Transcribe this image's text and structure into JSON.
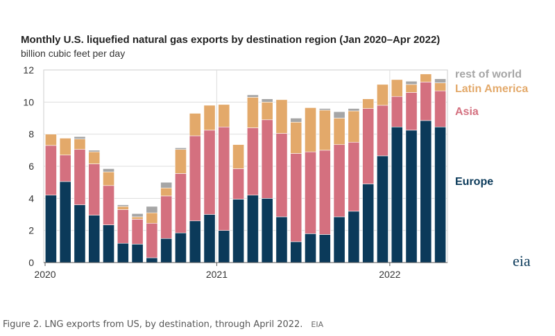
{
  "chart_data": {
    "type": "bar",
    "stacked": true,
    "title": "Monthly U.S. liquefied natural gas exports by destination region (Jan 2020–Apr 2022)",
    "ylabel": "billion cubic feet per day",
    "ylim": [
      0,
      12
    ],
    "yticks": [
      "0",
      "2",
      "4",
      "6",
      "8",
      "10",
      "12"
    ],
    "xtick_labels": [
      "2020",
      "2021",
      "2022"
    ],
    "grid": true,
    "legend_placement": "right",
    "categories": [
      "2020-01",
      "2020-02",
      "2020-03",
      "2020-04",
      "2020-05",
      "2020-06",
      "2020-07",
      "2020-08",
      "2020-09",
      "2020-10",
      "2020-11",
      "2020-12",
      "2021-01",
      "2021-02",
      "2021-03",
      "2021-04",
      "2021-05",
      "2021-06",
      "2021-07",
      "2021-08",
      "2021-09",
      "2021-10",
      "2021-11",
      "2021-12",
      "2022-01",
      "2022-02",
      "2022-03",
      "2022-04"
    ],
    "series": [
      {
        "name": "Europe",
        "color": "#0b3a5a",
        "values": [
          4.2,
          5.05,
          3.6,
          2.95,
          2.35,
          1.2,
          1.15,
          0.3,
          1.5,
          1.85,
          2.6,
          3.0,
          2.0,
          3.95,
          4.2,
          4.0,
          2.85,
          1.3,
          1.8,
          1.75,
          2.85,
          3.2,
          4.9,
          6.65,
          8.45,
          8.25,
          8.85,
          8.45
        ]
      },
      {
        "name": "Asia",
        "color": "#d4707f",
        "values": [
          3.1,
          1.65,
          3.45,
          3.2,
          2.45,
          2.1,
          1.55,
          2.15,
          2.65,
          3.7,
          5.3,
          5.25,
          6.45,
          1.9,
          4.2,
          4.9,
          5.2,
          5.5,
          5.1,
          5.25,
          4.5,
          4.3,
          4.7,
          3.15,
          1.9,
          2.35,
          2.4,
          2.25
        ]
      },
      {
        "name": "Latin America",
        "color": "#e3a96a",
        "values": [
          0.7,
          1.05,
          0.65,
          0.75,
          0.85,
          0.2,
          0.15,
          0.65,
          0.5,
          1.5,
          1.4,
          1.55,
          1.4,
          1.5,
          1.9,
          1.1,
          2.1,
          1.95,
          2.75,
          2.5,
          1.65,
          1.95,
          0.6,
          1.3,
          1.05,
          0.5,
          0.5,
          0.5
        ]
      },
      {
        "name": "rest of world",
        "color": "#a6a6a6",
        "values": [
          0,
          0,
          0.15,
          0.1,
          0.2,
          0.1,
          0.2,
          0.4,
          0.35,
          0.1,
          0,
          0,
          0,
          0,
          0.15,
          0.2,
          0,
          0.25,
          0,
          0.1,
          0.4,
          0.15,
          0,
          0,
          0,
          0.2,
          0,
          0.25
        ]
      }
    ]
  },
  "caption": {
    "text": "Figure 2. LNG exports from US, by destination, through April 2022.",
    "source": "EIA"
  },
  "logo": "eia"
}
